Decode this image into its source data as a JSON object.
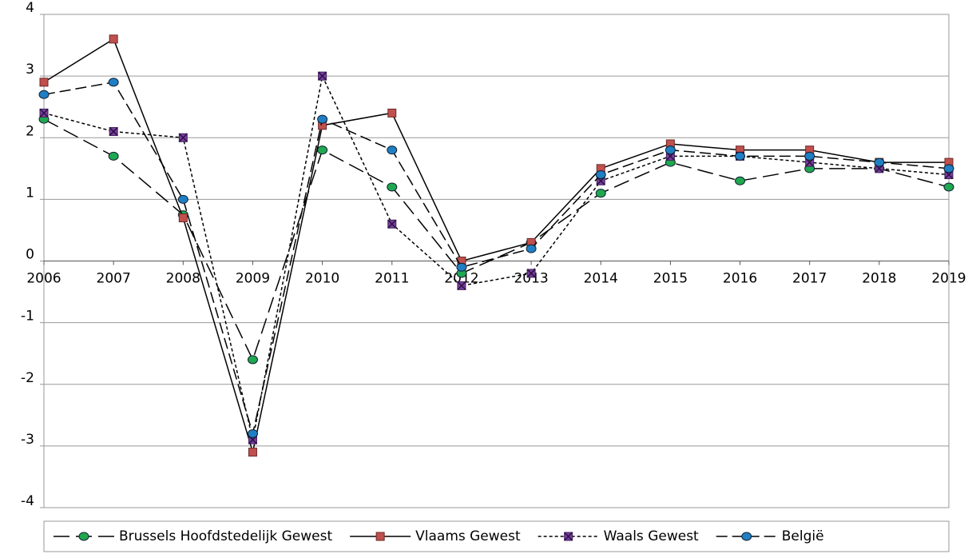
{
  "chart_data": {
    "type": "line",
    "categories": [
      "2006",
      "2007",
      "2008",
      "2009",
      "2010",
      "2011",
      "2012",
      "2013",
      "2014",
      "2015",
      "2016",
      "2017",
      "2018",
      "2019"
    ],
    "ylim": [
      -4,
      4
    ],
    "yticks": [
      -4,
      -3,
      -2,
      -1,
      0,
      1,
      2,
      3,
      4
    ],
    "grid": true,
    "legend": "bottom",
    "series": [
      {
        "name": "Brussels Hoofdstedelijk Gewest",
        "color": "#1fa84f",
        "dash": "long-dash",
        "marker": "circle",
        "values": [
          2.3,
          1.7,
          0.75,
          -1.6,
          1.8,
          1.2,
          -0.2,
          0.3,
          1.1,
          1.6,
          1.3,
          1.5,
          1.5,
          1.2
        ]
      },
      {
        "name": "Vlaams Gewest",
        "color": "#c0504d",
        "dash": "solid",
        "marker": "square",
        "values": [
          2.9,
          3.6,
          0.7,
          -3.1,
          2.2,
          2.4,
          0.0,
          0.3,
          1.5,
          1.9,
          1.8,
          1.8,
          1.6,
          1.6
        ]
      },
      {
        "name": "Waals Gewest",
        "color": "#7a3fa0",
        "dash": "dotted",
        "marker": "x-square",
        "values": [
          2.4,
          2.1,
          2.0,
          -2.9,
          3.0,
          0.6,
          -0.4,
          -0.2,
          1.3,
          1.7,
          1.7,
          1.6,
          1.5,
          1.4
        ]
      },
      {
        "name": "België",
        "color": "#1f7fc4",
        "dash": "dash",
        "marker": "circle",
        "values": [
          2.7,
          2.9,
          1.0,
          -2.8,
          2.3,
          1.8,
          -0.1,
          0.2,
          1.4,
          1.8,
          1.7,
          1.7,
          1.6,
          1.5
        ]
      }
    ]
  }
}
